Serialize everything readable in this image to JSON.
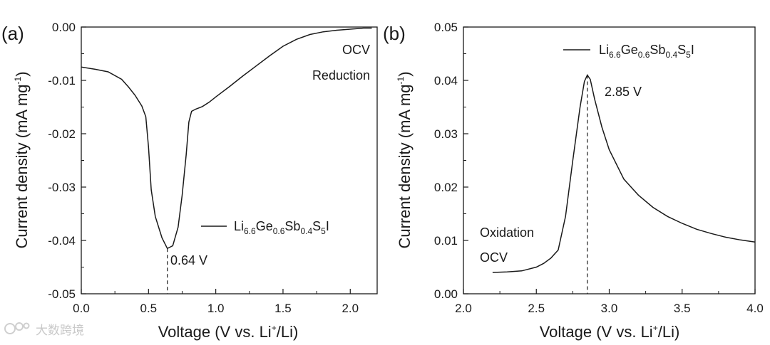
{
  "chart_data": [
    {
      "type": "line",
      "panel_label": "(a)",
      "xlabel_parts": [
        "Voltage (V vs. Li",
        "+",
        "/Li)"
      ],
      "ylabel_parts": [
        "Current density (mA mg",
        "-1",
        ")"
      ],
      "xlim": [
        0.0,
        2.2
      ],
      "ylim": [
        -0.05,
        0.0
      ],
      "x_ticks": [
        0.0,
        0.5,
        1.0,
        1.5,
        2.0
      ],
      "x_tick_labels": [
        "0.0",
        "0.5",
        "1.0",
        "1.5",
        "2.0"
      ],
      "y_ticks": [
        0.0,
        -0.01,
        -0.02,
        -0.03,
        -0.04,
        -0.05
      ],
      "y_tick_labels": [
        "0.00",
        "-0.01",
        "-0.02",
        "-0.03",
        "-0.04",
        "-0.05"
      ],
      "series": [
        {
          "name": "Li6.6Ge0.6Sb0.4S5I",
          "x": [
            0.0,
            0.1,
            0.2,
            0.3,
            0.35,
            0.4,
            0.45,
            0.48,
            0.5,
            0.52,
            0.55,
            0.6,
            0.64,
            0.68,
            0.72,
            0.75,
            0.78,
            0.8,
            0.82,
            0.85,
            0.9,
            0.95,
            1.0,
            1.1,
            1.2,
            1.3,
            1.4,
            1.5,
            1.6,
            1.7,
            1.8,
            1.9,
            2.0,
            2.1,
            2.16
          ],
          "y": [
            -0.0075,
            -0.0079,
            -0.0084,
            -0.0098,
            -0.0112,
            -0.0128,
            -0.0148,
            -0.0168,
            -0.0225,
            -0.0305,
            -0.0355,
            -0.0395,
            -0.0415,
            -0.041,
            -0.0375,
            -0.0315,
            -0.024,
            -0.0178,
            -0.0158,
            -0.0154,
            -0.0149,
            -0.0141,
            -0.0131,
            -0.0112,
            -0.0092,
            -0.0073,
            -0.0054,
            -0.0036,
            -0.0023,
            -0.0014,
            -0.0009,
            -0.0006,
            -0.0004,
            -0.0002,
            -0.0002
          ]
        }
      ],
      "legend": {
        "base": [
          "Li",
          "Ge",
          "Sb",
          "S",
          "I"
        ],
        "subs": [
          "6.6",
          "0.6",
          "0.4",
          "5"
        ],
        "placement": "lower-right"
      },
      "annotations": {
        "ocv": "OCV",
        "process": "Reduction",
        "peak_label": "0.64 V",
        "peak_x": 0.64,
        "peak_y": -0.0415
      }
    },
    {
      "type": "line",
      "panel_label": "(b)",
      "xlabel_parts": [
        "Voltage (V vs. Li",
        "+",
        "/Li)"
      ],
      "ylabel_parts": [
        "Current density (mA mg",
        "-1",
        ")"
      ],
      "xlim": [
        2.0,
        4.0
      ],
      "ylim": [
        0.0,
        0.05
      ],
      "x_ticks": [
        2.0,
        2.5,
        3.0,
        3.5,
        4.0
      ],
      "x_tick_labels": [
        "2.0",
        "2.5",
        "3.0",
        "3.5",
        "4.0"
      ],
      "y_ticks": [
        0.0,
        0.01,
        0.02,
        0.03,
        0.04,
        0.05
      ],
      "y_tick_labels": [
        "0.00",
        "0.01",
        "0.02",
        "0.03",
        "0.04",
        "0.05"
      ],
      "series": [
        {
          "name": "Li6.6Ge0.6Sb0.4S5I",
          "x": [
            2.2,
            2.3,
            2.4,
            2.5,
            2.55,
            2.6,
            2.65,
            2.7,
            2.75,
            2.8,
            2.83,
            2.85,
            2.87,
            2.9,
            2.95,
            3.0,
            3.1,
            3.2,
            3.3,
            3.4,
            3.5,
            3.6,
            3.7,
            3.8,
            3.9,
            4.0
          ],
          "y": [
            0.004,
            0.0041,
            0.0043,
            0.005,
            0.0057,
            0.0067,
            0.0082,
            0.0145,
            0.025,
            0.035,
            0.0398,
            0.041,
            0.0402,
            0.0365,
            0.0312,
            0.027,
            0.0215,
            0.0185,
            0.0162,
            0.0145,
            0.0132,
            0.0121,
            0.0113,
            0.0106,
            0.0101,
            0.0097
          ]
        }
      ],
      "legend": {
        "base": [
          "Li",
          "Ge",
          "Sb",
          "S",
          "I"
        ],
        "subs": [
          "6.6",
          "0.6",
          "0.4",
          "5"
        ],
        "placement": "top-right"
      },
      "annotations": {
        "ocv": "OCV",
        "process": "Oxidation",
        "peak_label": "2.85 V",
        "peak_x": 2.85,
        "peak_y": 0.041
      }
    }
  ],
  "watermark": {
    "text": "大数跨境"
  }
}
